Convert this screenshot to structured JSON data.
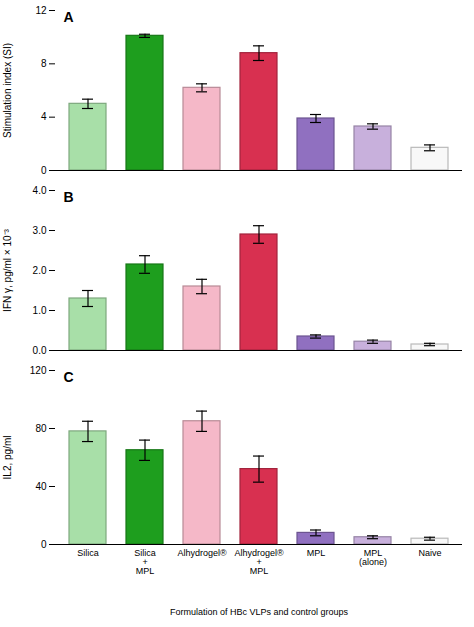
{
  "chart_data": [
    {
      "type": "bar",
      "title": "A",
      "categories": [
        "Silica",
        "Silica\n+\nMPL",
        "Alhydrogel®",
        "Alhydrogel®\n+\nMPL",
        "MPL",
        "MPL\n(alone)",
        "Naive"
      ],
      "values": [
        5.0,
        10.1,
        6.2,
        8.8,
        3.9,
        3.3,
        1.7
      ],
      "errors": [
        0.35,
        0.12,
        0.3,
        0.55,
        0.3,
        0.2,
        0.22
      ],
      "colors": [
        "#a8dfa8",
        "#1e9e1e",
        "#f5b8c8",
        "#d83050",
        "#9070c0",
        "#c8b0dc",
        "#f8f8f8"
      ],
      "ylabel": "Stimulation index (SI)",
      "ylim": [
        0,
        12
      ],
      "yticks": [
        0,
        4,
        8,
        12
      ],
      "tick_labels": "y"
    },
    {
      "type": "bar",
      "title": "B",
      "categories": [
        "Silica",
        "Silica\n+\nMPL",
        "Alhydrogel®",
        "Alhydrogel®\n+\nMPL",
        "MPL",
        "MPL\n(alone)",
        "Naive"
      ],
      "values": [
        1.3,
        2.15,
        1.6,
        2.9,
        0.35,
        0.22,
        0.15
      ],
      "errors": [
        0.2,
        0.22,
        0.18,
        0.22,
        0.04,
        0.04,
        0.03
      ],
      "colors": [
        "#a8dfa8",
        "#1e9e1e",
        "#f5b8c8",
        "#d83050",
        "#9070c0",
        "#c8b0dc",
        "#f8f8f8"
      ],
      "ylabel": "IFN γ, pg/ml × 10⁻³",
      "ylim": [
        0,
        4
      ],
      "yticks": [
        0,
        1,
        2,
        3,
        4
      ],
      "tick_labels": "y"
    },
    {
      "type": "bar",
      "title": "C",
      "categories": [
        "Silica",
        "Silica\n+\nMPL",
        "Alhydrogel®",
        "Alhydrogel®\n+\nMPL",
        "MPL",
        "MPL\n(alone)",
        "Naive"
      ],
      "values": [
        78,
        65,
        85,
        52,
        8,
        5,
        4
      ],
      "errors": [
        7,
        7,
        7,
        9,
        2,
        1,
        1
      ],
      "colors": [
        "#a8dfa8",
        "#1e9e1e",
        "#f5b8c8",
        "#d83050",
        "#9070c0",
        "#c8b0dc",
        "#f8f8f8"
      ],
      "ylabel": "IL2, pg/ml",
      "xlabel": "Formulation of HBc VLPs and control groups",
      "ylim": [
        0,
        120
      ],
      "yticks": [
        0,
        40,
        80,
        120
      ]
    }
  ]
}
